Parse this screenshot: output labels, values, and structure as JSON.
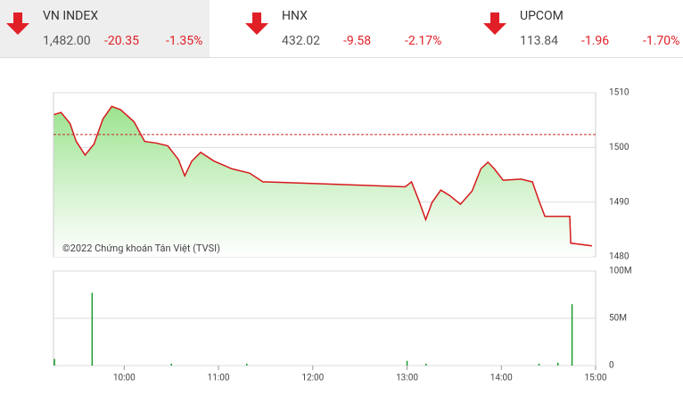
{
  "indices": [
    {
      "name": "VN INDEX",
      "value": "1,482.00",
      "change": "-20.35",
      "percent": "-1.35%"
    },
    {
      "name": "HNX",
      "value": "432.02",
      "change": "-9.58",
      "percent": "-2.17%"
    },
    {
      "name": "UPCOM",
      "value": "113.84",
      "change": "-1.96",
      "percent": "-1.70%"
    }
  ],
  "chart_data": [
    {
      "type": "line",
      "annotation": "©2022 Chứng khoán Tân Việt (TVSI)",
      "x": [
        9.255,
        9.33,
        9.425,
        9.491,
        9.585,
        9.679,
        9.774,
        9.868,
        9.962,
        10.104,
        10.217,
        10.34,
        10.462,
        10.575,
        10.642,
        10.717,
        10.811,
        10.953,
        11.142,
        11.33,
        11.472,
        11.519,
        12.981,
        13.047,
        13.123,
        13.198,
        13.264,
        13.358,
        13.453,
        13.566,
        13.689,
        13.783,
        13.858,
        13.925,
        14.019,
        14.208,
        14.33,
        14.396,
        14.462,
        14.726,
        14.736,
        14.962
      ],
      "series": [
        {
          "name": "VN INDEX",
          "color": "#d7191c",
          "values": [
            1506.0,
            1506.4,
            1504.4,
            1501.1,
            1498.6,
            1500.6,
            1505.2,
            1507.5,
            1506.9,
            1504.7,
            1501.1,
            1500.8,
            1500.3,
            1497.8,
            1494.8,
            1497.5,
            1499.1,
            1497.5,
            1496.1,
            1495.3,
            1493.7,
            1493.7,
            1492.8,
            1493.7,
            1490.4,
            1486.8,
            1489.9,
            1492.2,
            1491.2,
            1489.6,
            1492.0,
            1496.1,
            1497.3,
            1496.1,
            1494.0,
            1494.2,
            1493.7,
            1490.4,
            1487.4,
            1487.4,
            1482.5,
            1482.0
          ]
        }
      ],
      "reference_line": 1502.35,
      "xlim": [
        9.25,
        15
      ],
      "ylim": [
        1480,
        1510
      ],
      "yticks": [
        1480,
        1490,
        1500,
        1510
      ],
      "grid": true
    },
    {
      "type": "bar",
      "x": [
        9.26,
        9.66,
        10.5,
        11.3,
        13.0,
        13.2,
        14.4,
        14.6,
        14.75
      ],
      "values": [
        7000000,
        77000000,
        2000000,
        2000000,
        5000000,
        2000000,
        2000000,
        3000000,
        65000000
      ],
      "color": "#1a9b2c",
      "xlim": [
        9.25,
        15
      ],
      "xticks": [
        {
          "value": 10,
          "label": "10:00"
        },
        {
          "value": 11,
          "label": "11:00"
        },
        {
          "value": 12,
          "label": "12:00"
        },
        {
          "value": 13,
          "label": "13:00"
        },
        {
          "value": 14,
          "label": "14:00"
        },
        {
          "value": 15,
          "label": "15:00"
        }
      ],
      "ylim": [
        0,
        100000000
      ],
      "yticks": [
        0,
        {
          "value": 50000000,
          "label": "50M"
        },
        {
          "value": 100000000,
          "label": "100M"
        }
      ],
      "grid": true
    }
  ]
}
